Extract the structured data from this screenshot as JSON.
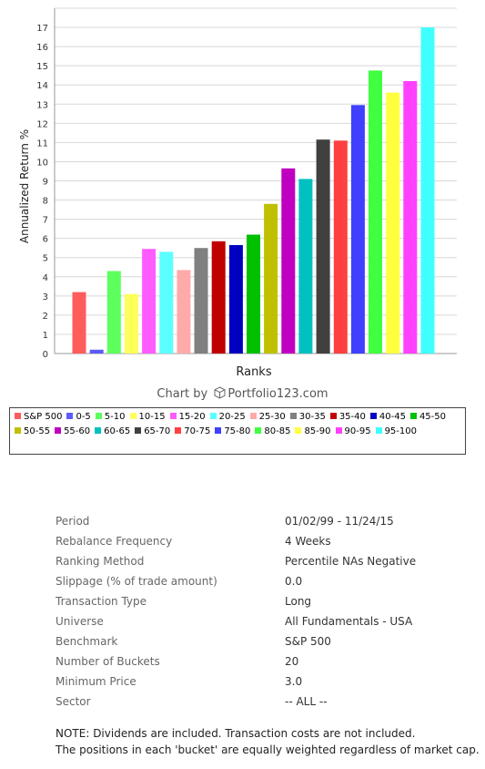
{
  "chart_data": {
    "type": "bar",
    "title": "",
    "xlabel": "Ranks",
    "ylabel": "Annualized Return %",
    "ylim": [
      0,
      18
    ],
    "yticks": [
      "0",
      "1",
      "2",
      "3",
      "4",
      "5",
      "6",
      "7",
      "8",
      "9",
      "10",
      "11",
      "12",
      "13",
      "14",
      "15",
      "16",
      "17"
    ],
    "grid": true,
    "legend_position": "bottom",
    "categories": [
      "S&P 500",
      "0-5",
      "5-10",
      "10-15",
      "15-20",
      "20-25",
      "25-30",
      "30-35",
      "35-40",
      "40-45",
      "45-50",
      "50-55",
      "55-60",
      "60-65",
      "65-70",
      "70-75",
      "75-80",
      "80-85",
      "85-90",
      "90-95",
      "95-100"
    ],
    "values": [
      3.2,
      0.2,
      4.3,
      3.1,
      5.45,
      5.3,
      4.35,
      5.5,
      5.85,
      5.65,
      6.2,
      7.8,
      9.65,
      9.1,
      11.15,
      11.1,
      12.95,
      14.75,
      13.6,
      14.2,
      17.0
    ],
    "colors": [
      "#ff5c5c",
      "#5b5bff",
      "#5cff5c",
      "#ffff5c",
      "#ff5cff",
      "#5cffff",
      "#ffaaaa",
      "#808080",
      "#c00000",
      "#0000c0",
      "#00c000",
      "#c0c000",
      "#c000c0",
      "#00c0c0",
      "#404040",
      "#ff4040",
      "#4040ff",
      "#40ff40",
      "#ffff40",
      "#ff40ff",
      "#40ffff"
    ]
  },
  "credit": {
    "prefix": "Chart by",
    "brand": "Portfolio123.com"
  },
  "params": [
    {
      "key": "Period",
      "value": "01/02/99 - 11/24/15"
    },
    {
      "key": "Rebalance Frequency",
      "value": "4 Weeks"
    },
    {
      "key": "Ranking Method",
      "value": "Percentile NAs Negative"
    },
    {
      "key": "Slippage (% of trade amount)",
      "value": "0.0"
    },
    {
      "key": "Transaction Type",
      "value": "Long"
    },
    {
      "key": "Universe",
      "value": "All Fundamentals - USA"
    },
    {
      "key": "Benchmark",
      "value": "S&P 500"
    },
    {
      "key": "Number of Buckets",
      "value": "20"
    },
    {
      "key": "Minimum Price",
      "value": "3.0"
    },
    {
      "key": "Sector",
      "value": "-- ALL --"
    }
  ],
  "note": {
    "line1": "NOTE: Dividends are included. Transaction costs are not included.",
    "line2": "The positions in each 'bucket' are equally weighted regardless of market cap."
  }
}
